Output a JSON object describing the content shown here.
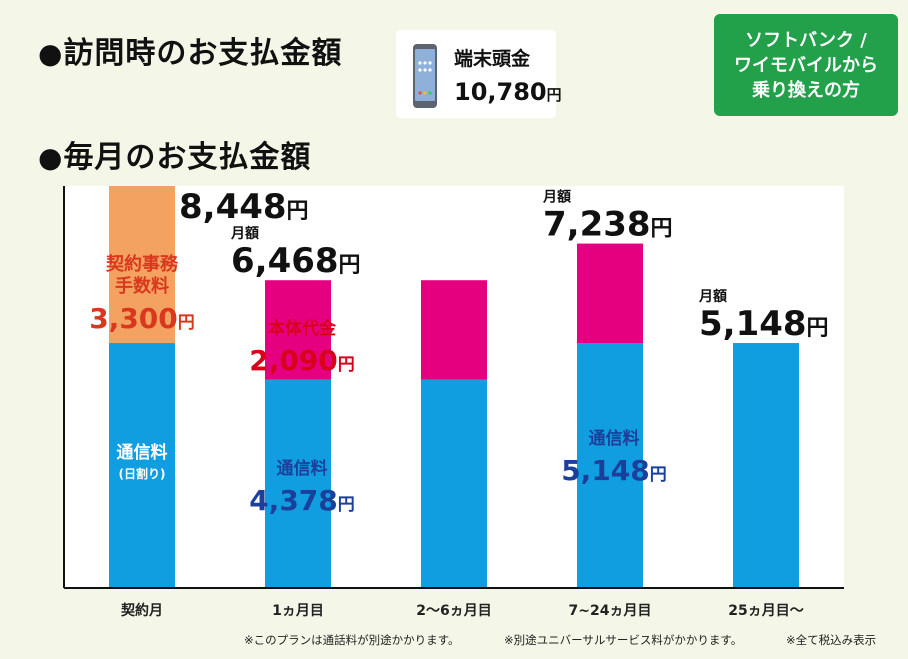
{
  "visit_payment": {
    "title": "訪問時のお支払金額",
    "device_label": "端末頭金",
    "device_amount": "10,780",
    "yen": "円"
  },
  "badge": {
    "lines": [
      "ソフトバンク /",
      "ワイモバイルから",
      "乗り換えの方"
    ]
  },
  "monthly_payment": {
    "title": "毎月のお支払金額"
  },
  "chart_data": {
    "type": "bar",
    "stacked": true,
    "categories": [
      "契約月",
      "1ヵ月目",
      "2～6ヵ月目",
      "7~24ヵ月目",
      "25ヵ月目～"
    ],
    "series": [
      {
        "name": "通信料",
        "color": "#119ee0",
        "values": [
          5148,
          4378,
          4378,
          5148,
          5148
        ]
      },
      {
        "name": "契約事務手数料",
        "color": "#f4a261",
        "values": [
          3300,
          0,
          0,
          0,
          0
        ]
      },
      {
        "name": "本体代金",
        "color": "#e4007f",
        "values": [
          0,
          2090,
          2090,
          2090,
          0
        ]
      }
    ],
    "totals": [
      8448,
      6468,
      6468,
      7238,
      5148
    ],
    "ylim": [
      0,
      8448
    ],
    "grid": false,
    "annotations": {
      "total_labels": [
        {
          "index": 0,
          "prefix": "",
          "value": "8,448",
          "unit": "円"
        },
        {
          "index": 1,
          "prefix": "月額",
          "value": "6,468",
          "unit": "円"
        },
        {
          "index": 3,
          "prefix": "月額",
          "value": "7,238",
          "unit": "円"
        },
        {
          "index": 4,
          "prefix": "月額",
          "value": "5,148",
          "unit": "円"
        }
      ],
      "segment_labels": [
        {
          "index": 0,
          "lines": [
            "契約事務",
            "手数料"
          ],
          "value": "3,300",
          "unit": "円",
          "color": "#d9381e"
        },
        {
          "index": 0,
          "lines": [
            "通信料",
            "(日割り)"
          ],
          "value": "",
          "unit": "",
          "color": "#ffffff"
        },
        {
          "index": 1,
          "lines": [
            "本体代金"
          ],
          "value": "2,090",
          "unit": "円",
          "color": "#d9001b"
        },
        {
          "index": 1,
          "lines": [
            "通信料"
          ],
          "value": "4,378",
          "unit": "円",
          "color": "#1d3f9c"
        },
        {
          "index": 3,
          "lines": [
            "通信料"
          ],
          "value": "5,148",
          "unit": "円",
          "color": "#1d3f9c"
        }
      ]
    }
  },
  "footnotes": [
    "※このプランは通話料が別途かかります。",
    "※別途ユニバーサルサービス料がかかります。",
    "※全て税込み表示"
  ]
}
